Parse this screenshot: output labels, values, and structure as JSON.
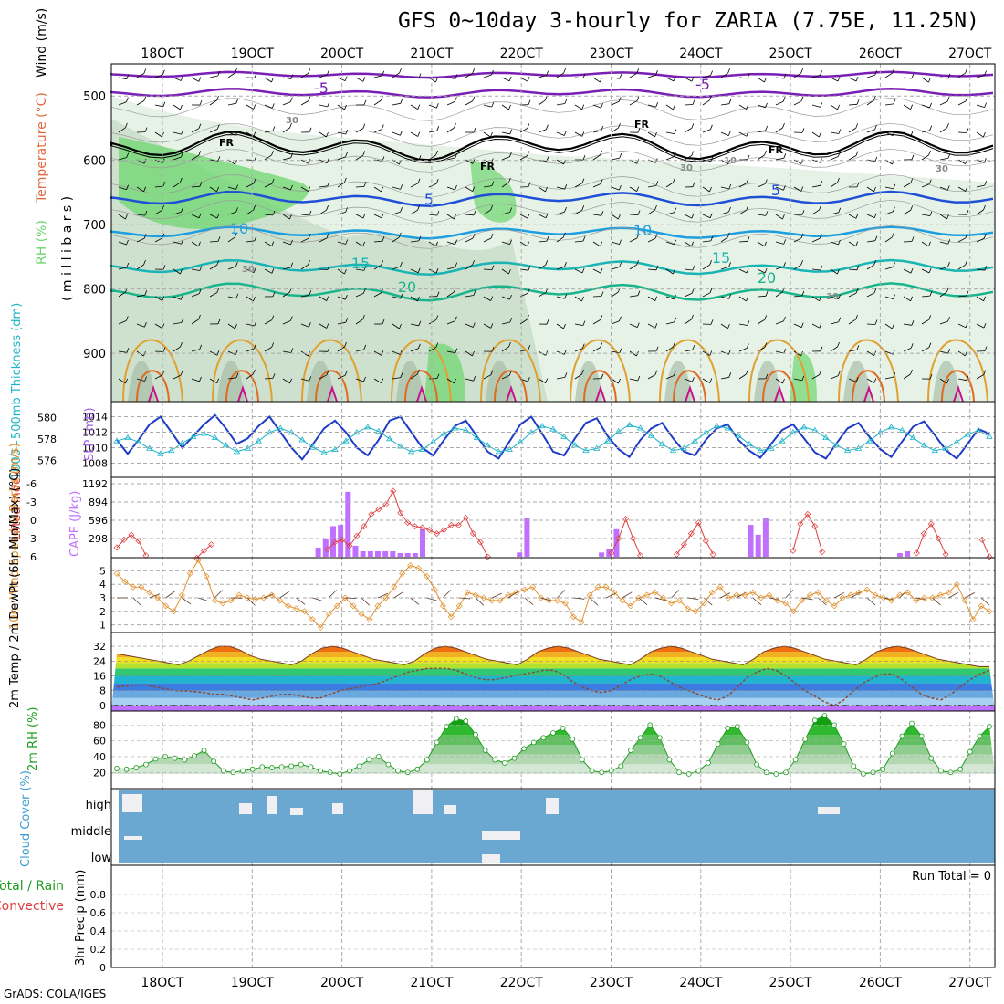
{
  "title": "GFS 0~10day 3-hourly for ZARIA (7.75E, 11.25N)",
  "footer": "GrADS: COLA/IGES",
  "colors": {
    "rh_light": "#e6f2e6",
    "rh_mid": "#c8dcc8",
    "rh_dark": "#a0b8a0",
    "rh_bright": "#6ed56e",
    "temp_m5": "#7a1fb5",
    "temp_5": "#1f4fd6",
    "temp_10": "#1c9ee0",
    "temp_15": "#19b4b4",
    "temp_20": "#19b48c",
    "temp_warm": "#e0a030",
    "temp_hot": "#e06a20",
    "temp_max": "#c8148c",
    "slp": "#1e3cc8",
    "thick": "#1eb4c8",
    "lifted": "#e03c3c",
    "cape": "#c070ff",
    "wind10": "#e0902c",
    "rh2m": "#1e9e1e",
    "cloud_bg": "#6aa8d2",
    "dewpt": "#8a4a3a"
  },
  "chart_data": [
    {
      "type": "contour",
      "panel": "upper_air",
      "xlabels": [
        "18OCT",
        "19OCT",
        "20OCT",
        "21OCT",
        "22OCT",
        "23OCT",
        "24OCT",
        "25OCT",
        "26OCT",
        "27OCT"
      ],
      "bottom_xlabels": [
        "18OCT",
        "19OCT",
        "20OCT",
        "21OCT",
        "22OCT",
        "23OCT",
        "24OCT",
        "25OCT",
        "26OCT",
        "27OCT"
      ],
      "ylabel_parts": [
        "RH (%)",
        "Temperature (°C)",
        "Wind (m/s)"
      ],
      "ylabel_units": "( m i l l i b a r s )",
      "yticks": [
        500,
        600,
        700,
        800,
        900
      ],
      "contour_labels": [
        {
          "text": "-5",
          "series": "temp_m5"
        },
        {
          "text": "-5",
          "series": "temp_m5"
        },
        {
          "text": "FR",
          "series": "freezing"
        },
        {
          "text": "FR",
          "series": "freezing"
        },
        {
          "text": "FR",
          "series": "freezing"
        },
        {
          "text": "FR",
          "series": "freezing"
        },
        {
          "text": "5",
          "series": "temp_5"
        },
        {
          "text": "5",
          "series": "temp_5"
        },
        {
          "text": "10",
          "series": "temp_10"
        },
        {
          "text": "10",
          "series": "temp_10"
        },
        {
          "text": "15",
          "series": "temp_15"
        },
        {
          "text": "15",
          "series": "temp_15"
        },
        {
          "text": "20",
          "series": "temp_20"
        },
        {
          "text": "20",
          "series": "temp_20"
        },
        {
          "text": "30",
          "series": "rh"
        },
        {
          "text": "30",
          "series": "rh"
        },
        {
          "text": "30",
          "series": "rh"
        },
        {
          "text": "30",
          "series": "rh"
        },
        {
          "text": "30",
          "series": "rh"
        },
        {
          "text": "10",
          "series": "rh"
        }
      ]
    },
    {
      "type": "line",
      "panel": "slp_thickness",
      "ylabel_left": "1000~500mb Thickness (dm)",
      "ylabel_right": "SLP (mb)",
      "yticks_left": [
        576,
        578,
        580
      ],
      "yticks_right": [
        1008,
        1010,
        1012,
        1014
      ],
      "series": [
        {
          "name": "SLP (mb)",
          "axis": "right",
          "values": [
            1011.0,
            1009.2,
            1011.0,
            1013.0,
            1014.0,
            1012.0,
            1010.0,
            1011.5,
            1013.0,
            1014.2,
            1012.5,
            1010.5,
            1011.2,
            1012.8,
            1014.0,
            1012.0,
            1010.0,
            1008.5,
            1010.5,
            1012.5,
            1013.5,
            1012.0,
            1010.0,
            1009.0,
            1011.0,
            1013.5,
            1014.0,
            1012.0,
            1010.0,
            1009.0,
            1011.0,
            1012.8,
            1013.5,
            1011.5,
            1009.5,
            1008.6,
            1010.8,
            1013.0,
            1014.0,
            1011.8,
            1009.5,
            1009.0,
            1011.2,
            1013.2,
            1013.8,
            1011.5,
            1009.8,
            1008.8,
            1011.0,
            1012.5,
            1013.2,
            1011.2,
            1009.5,
            1009.0,
            1011.0,
            1012.5,
            1013.0,
            1011.0,
            1009.6,
            1008.7,
            1010.5,
            1012.3,
            1013.0,
            1011.2,
            1009.4,
            1008.6,
            1010.6,
            1012.5,
            1013.2,
            1011.4,
            1009.8,
            1008.8,
            1010.8,
            1012.7,
            1013.4,
            1011.6,
            1009.7,
            1008.6,
            1010.5,
            1012.4,
            1011.8
          ]
        },
        {
          "name": "1000~500mb Thickness (dm)",
          "axis": "left",
          "values": [
            577.8,
            578.1,
            577.7,
            577.1,
            576.6,
            576.9,
            577.6,
            578.2,
            578.5,
            578.1,
            577.4,
            576.8,
            577.1,
            577.8,
            578.6,
            579.0,
            578.6,
            577.9,
            577.2,
            576.7,
            577.0,
            577.8,
            578.6,
            579.1,
            578.7,
            578.0,
            577.3,
            576.8,
            577.0,
            577.7,
            578.5,
            579.0,
            578.8,
            578.1,
            577.4,
            576.8,
            577.0,
            577.7,
            578.6,
            579.2,
            578.9,
            578.2,
            577.4,
            576.9,
            577.1,
            577.8,
            578.7,
            579.3,
            579.0,
            578.3,
            577.5,
            576.9,
            577.1,
            577.8,
            578.6,
            579.2,
            579.0,
            578.3,
            577.5,
            576.9,
            577.1,
            577.8,
            578.6,
            579.1,
            578.8,
            578.1,
            577.4,
            576.9,
            577.1,
            577.8,
            578.6,
            579.1,
            578.8,
            578.1,
            577.4,
            576.9,
            577.1,
            577.7,
            578.4,
            578.8,
            578.2
          ]
        }
      ]
    },
    {
      "type": "bar",
      "panel": "lifted_cape",
      "ylabel_left": "Lifted Index",
      "ylabel_right": "CAPE (J/kg)",
      "yticks_left": [
        -6,
        -3,
        0,
        3,
        6
      ],
      "yticks_right": [
        298,
        596,
        894,
        1192
      ],
      "series": [
        {
          "name": "CAPE (J/kg)",
          "type": "bar",
          "values": [
            0,
            0,
            0,
            0,
            0,
            0,
            0,
            0,
            0,
            0,
            0,
            0,
            0,
            0,
            0,
            0,
            0,
            0,
            0,
            0,
            0,
            0,
            0,
            0,
            0,
            0,
            0,
            150,
            300,
            500,
            520,
            1060,
            180,
            90,
            90,
            90,
            90,
            90,
            60,
            60,
            60,
            450,
            0,
            0,
            0,
            0,
            0,
            0,
            0,
            0,
            0,
            0,
            0,
            0,
            70,
            630,
            0,
            0,
            0,
            0,
            0,
            0,
            0,
            0,
            0,
            70,
            120,
            450,
            0,
            0,
            0,
            0,
            0,
            0,
            0,
            0,
            0,
            0,
            0,
            0,
            0,
            0,
            0,
            0,
            0,
            520,
            360,
            640,
            0,
            0,
            0,
            0,
            0,
            0,
            0,
            0,
            0,
            0,
            0,
            0,
            0,
            0,
            0,
            0,
            0,
            60,
            90,
            0,
            0,
            0,
            0,
            0,
            0,
            0,
            0,
            0,
            0,
            0
          ]
        },
        {
          "name": "Lifted Index",
          "type": "line",
          "values": [
            4.5,
            3.2,
            2.4,
            3.4,
            5.8,
            null,
            null,
            null,
            null,
            null,
            null,
            6.2,
            5.0,
            4.0,
            null,
            null,
            null,
            null,
            null,
            null,
            null,
            null,
            null,
            null,
            null,
            null,
            null,
            null,
            null,
            4.8,
            3.6,
            3.2,
            4.2,
            2.6,
            1.0,
            -1.0,
            -1.8,
            -2.6,
            -4.8,
            -1.2,
            0.4,
            1.0,
            1.2,
            1.6,
            2.2,
            1.6,
            0.8,
            0.8,
            -0.4,
            2.2,
            3.6,
            6.0,
            null,
            null,
            null,
            null,
            null,
            null,
            null,
            null,
            null,
            null,
            null,
            null,
            null,
            null,
            null,
            null,
            5.4,
            3.0,
            -0.2,
            3.0,
            5.8,
            null,
            null,
            null,
            null,
            5.6,
            4.0,
            2.2,
            0.4,
            3.4,
            5.6,
            null,
            null,
            null,
            null,
            null,
            null,
            null,
            null,
            null,
            null,
            5.0,
            0.6,
            -1.0,
            1.0,
            5.2,
            null,
            null,
            null,
            null,
            null,
            null,
            null,
            null,
            null,
            null,
            null,
            null,
            5.4,
            2.2,
            0.6,
            3.0,
            5.6,
            null,
            null,
            null,
            null,
            3.2,
            6.0
          ]
        }
      ]
    },
    {
      "type": "line",
      "panel": "wind10m",
      "ylabel": "10m Wind Speed & Barbs (m/s)",
      "yticks": [
        1,
        2,
        3,
        4,
        5
      ],
      "series": [
        {
          "name": "10m Wind Speed (m/s)",
          "values": [
            4.8,
            4.2,
            3.8,
            3.8,
            3.4,
            3.0,
            2.4,
            2.0,
            3.2,
            4.8,
            5.8,
            4.6,
            2.8,
            2.6,
            2.8,
            3.2,
            3.0,
            2.9,
            3.0,
            3.2,
            2.8,
            2.4,
            2.2,
            2.0,
            1.4,
            0.8,
            1.8,
            2.4,
            3.0,
            2.4,
            1.8,
            1.4,
            2.4,
            3.0,
            3.8,
            4.8,
            5.4,
            5.2,
            4.6,
            3.6,
            2.4,
            1.6,
            2.4,
            3.4,
            3.2,
            3.0,
            2.8,
            2.8,
            3.2,
            3.4,
            3.6,
            3.8,
            3.0,
            2.8,
            2.8,
            2.6,
            1.6,
            1.2,
            3.2,
            3.8,
            3.8,
            3.4,
            2.8,
            2.4,
            3.0,
            3.2,
            3.4,
            3.0,
            2.6,
            2.8,
            2.2,
            2.0,
            2.6,
            3.4,
            3.8,
            3.0,
            3.2,
            3.2,
            3.4,
            3.0,
            3.2,
            2.8,
            2.6,
            2.0,
            2.8,
            3.2,
            3.4,
            2.8,
            2.4,
            3.0,
            3.2,
            3.4,
            3.6,
            3.2,
            3.0,
            2.8,
            3.2,
            3.4,
            2.8,
            3.0,
            3.0,
            3.2,
            3.4,
            4.0,
            2.8,
            1.4,
            2.4,
            2.0
          ]
        }
      ]
    },
    {
      "type": "area",
      "panel": "temp2m",
      "ylabel": "2m Temp / 2m DewPt (6hr Min/Max) (°C)",
      "yticks": [
        0,
        8,
        16,
        24,
        32
      ],
      "series": [
        {
          "name": "2m Temp (°C)",
          "values": [
            28,
            27,
            26,
            25,
            24,
            23,
            22,
            24,
            27,
            30,
            32,
            32,
            30,
            27,
            25,
            24,
            23,
            22,
            24,
            28,
            31,
            32,
            31,
            29,
            27,
            25,
            24,
            23,
            22,
            24,
            28,
            31,
            32,
            31,
            29,
            27,
            25,
            24,
            23,
            22,
            25,
            29,
            31,
            32,
            31,
            29,
            27,
            25,
            24,
            23,
            22,
            25,
            29,
            31,
            32,
            31,
            29,
            27,
            25,
            24,
            23,
            22,
            25,
            29,
            31,
            32,
            31,
            29,
            27,
            25,
            24,
            23,
            22,
            25,
            29,
            31,
            32,
            31,
            29,
            27,
            25,
            24,
            23,
            22,
            21,
            21
          ]
        },
        {
          "name": "2m DewPt (°C)",
          "values": [
            10,
            10.5,
            11,
            11,
            10,
            9,
            8,
            8,
            7.5,
            7,
            6,
            6,
            5,
            4,
            3,
            4,
            5,
            6,
            6,
            5,
            4,
            4,
            6,
            8,
            9,
            10,
            11,
            12,
            14,
            16,
            18,
            19,
            20,
            20,
            20,
            19,
            17,
            15,
            14,
            14,
            15,
            16,
            17,
            18,
            19,
            19,
            17,
            13,
            10,
            8,
            7,
            8,
            11,
            14,
            16,
            17,
            16,
            13,
            10,
            8,
            6,
            4,
            3,
            5,
            10,
            15,
            18,
            20,
            19,
            16,
            12,
            8,
            5,
            2,
            0,
            3,
            8,
            12,
            15,
            17,
            17,
            14,
            10,
            6,
            4,
            3,
            6,
            10,
            14,
            17,
            19
          ]
        }
      ]
    },
    {
      "type": "area",
      "panel": "rh2m",
      "ylabel": "2m RH (%)",
      "yticks": [
        20,
        40,
        60,
        80
      ],
      "series": [
        {
          "name": "2m RH (%)",
          "values": [
            25,
            24,
            26,
            30,
            37,
            40,
            38,
            36,
            41,
            48,
            34,
            22,
            20,
            22,
            24,
            27,
            26,
            27,
            28,
            30,
            27,
            22,
            20,
            18,
            22,
            28,
            36,
            40,
            30,
            22,
            20,
            24,
            36,
            58,
            78,
            88,
            85,
            68,
            48,
            36,
            32,
            38,
            50,
            58,
            64,
            70,
            76,
            62,
            36,
            22,
            20,
            22,
            28,
            48,
            64,
            80,
            64,
            36,
            20,
            18,
            22,
            32,
            56,
            76,
            78,
            58,
            30,
            20,
            18,
            20,
            36,
            62,
            86,
            92,
            80,
            56,
            28,
            18,
            20,
            24,
            44,
            66,
            82,
            66,
            38,
            22,
            20,
            24,
            46,
            66,
            78
          ]
        }
      ]
    },
    {
      "type": "bar",
      "panel": "cloud",
      "ylabel": "Cloud Cover (%)",
      "rows": [
        "high",
        "middle",
        "low"
      ]
    },
    {
      "type": "bar",
      "panel": "precip",
      "ylabel_left": "Total / Rain",
      "ylabel_left2": "Convective",
      "ylabel": "3hr Precip (mm)",
      "yticks": [
        0,
        0.2,
        0.4,
        0.6,
        0.8
      ],
      "annotation": "Run Total = 0"
    }
  ]
}
